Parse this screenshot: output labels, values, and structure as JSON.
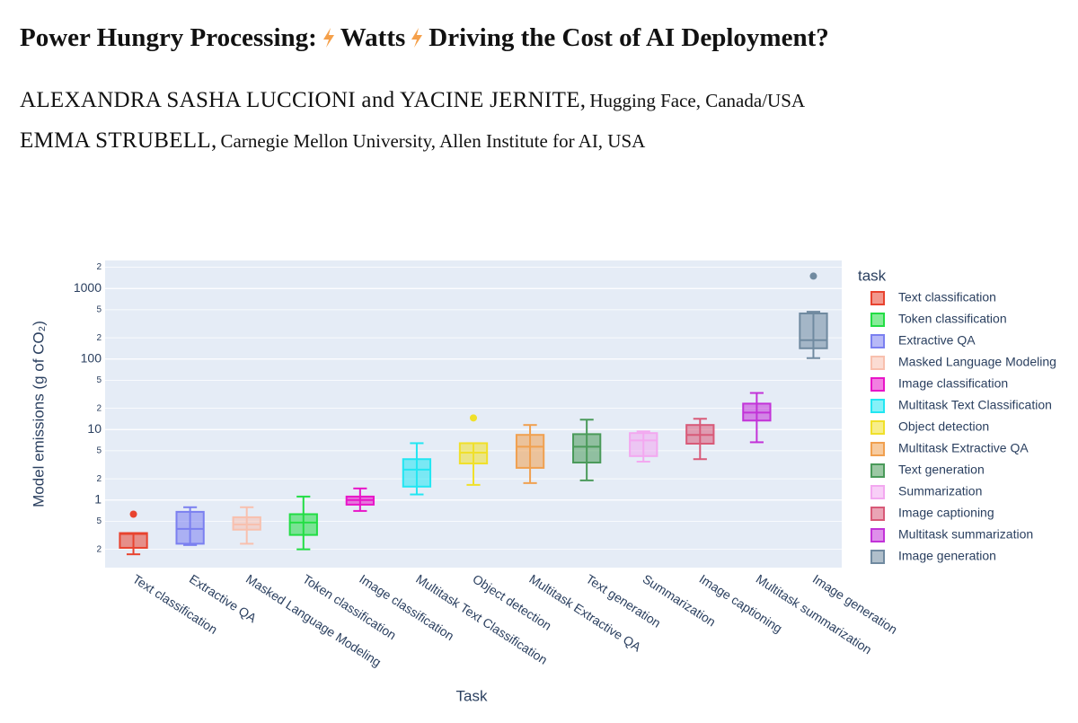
{
  "header": {
    "title": [
      "Power Hungry Processing:",
      "Watts",
      "Driving the Cost of AI Deployment?"
    ],
    "authors": [
      {
        "names": "ALEXANDRA SASHA LUCCIONI and YACINE JERNITE,",
        "affiliation": "Hugging Face, Canada/USA"
      },
      {
        "names": "EMMA STRUBELL,",
        "affiliation": "Carnegie Mellon University, Allen Institute for AI, USA"
      }
    ]
  },
  "chart_data": {
    "type": "box",
    "log_y": true,
    "grid": true,
    "legend_position": "right",
    "legend_title": "task",
    "xlabel": "Task",
    "ylabel": "Model emissions (g of CO₂)",
    "ylim": [
      0.11,
      2500
    ],
    "yticks": [
      {
        "value": 0.2,
        "label": "2"
      },
      {
        "value": 0.5,
        "label": "5"
      },
      1,
      {
        "value": 2,
        "label": "2"
      },
      {
        "value": 5,
        "label": "5"
      },
      10,
      {
        "value": 20,
        "label": "2"
      },
      {
        "value": 50,
        "label": "5"
      },
      100,
      {
        "value": 200,
        "label": "2"
      },
      {
        "value": 500,
        "label": "5"
      },
      1000,
      {
        "value": 2000,
        "label": "2"
      }
    ],
    "categories": [
      "Text classification",
      "Extractive QA",
      "Masked Language Modeling",
      "Token classification",
      "Image classification",
      "Multitask Text Classification",
      "Object detection",
      "Multitask Extractive QA",
      "Text generation",
      "Summarization",
      "Image captioning",
      "Multitask summarization",
      "Image generation"
    ],
    "series": [
      {
        "name": "Text classification",
        "color": "#e8432f",
        "min": 0.17,
        "q1": 0.21,
        "median": 0.33,
        "q3": 0.34,
        "max": 0.34,
        "outliers": [
          0.63
        ]
      },
      {
        "name": "Token classification",
        "color": "#22dd44",
        "min": 0.2,
        "q1": 0.32,
        "median": 0.48,
        "q3": 0.63,
        "max": 1.12,
        "outliers": []
      },
      {
        "name": "Extractive QA",
        "color": "#7b80f0",
        "min": 0.23,
        "q1": 0.24,
        "median": 0.39,
        "q3": 0.68,
        "max": 0.79,
        "outliers": []
      },
      {
        "name": "Masked Language Modeling",
        "color": "#f8c0ae",
        "min": 0.24,
        "q1": 0.38,
        "median": 0.45,
        "q3": 0.57,
        "max": 0.79,
        "outliers": []
      },
      {
        "name": "Image classification",
        "color": "#e815c8",
        "min": 0.7,
        "q1": 0.86,
        "median": 1.0,
        "q3": 1.12,
        "max": 1.46,
        "outliers": []
      },
      {
        "name": "Multitask Text Classification",
        "color": "#22e6f2",
        "min": 1.2,
        "q1": 1.55,
        "median": 2.7,
        "q3": 3.8,
        "max": 6.4,
        "outliers": []
      },
      {
        "name": "Object detection",
        "color": "#f0e02a",
        "min": 1.64,
        "q1": 3.3,
        "median": 4.7,
        "q3": 6.4,
        "max": 6.4,
        "outliers": [
          14.6
        ]
      },
      {
        "name": "Multitask Extractive QA",
        "color": "#f0a050",
        "min": 1.74,
        "q1": 2.86,
        "median": 5.7,
        "q3": 8.4,
        "max": 11.6,
        "outliers": []
      },
      {
        "name": "Text generation",
        "color": "#4a9a5a",
        "min": 1.9,
        "q1": 3.4,
        "median": 5.7,
        "q3": 8.6,
        "max": 13.8,
        "outliers": []
      },
      {
        "name": "Summarization",
        "color": "#f3a8f0",
        "min": 3.5,
        "q1": 4.2,
        "median": 7.0,
        "q3": 8.9,
        "max": 9.4,
        "outliers": []
      },
      {
        "name": "Image captioning",
        "color": "#d85a78",
        "min": 3.8,
        "q1": 6.3,
        "median": 8.4,
        "q3": 11.6,
        "max": 14.2,
        "outliers": []
      },
      {
        "name": "Multitask summarization",
        "color": "#c233d8",
        "min": 6.6,
        "q1": 13.4,
        "median": 17.4,
        "q3": 23.3,
        "max": 33,
        "outliers": []
      },
      {
        "name": "Image generation",
        "color": "#708aa0",
        "min": 103,
        "q1": 142,
        "median": 185,
        "q3": 443,
        "max": 468,
        "outliers": [
          1500
        ]
      }
    ]
  }
}
